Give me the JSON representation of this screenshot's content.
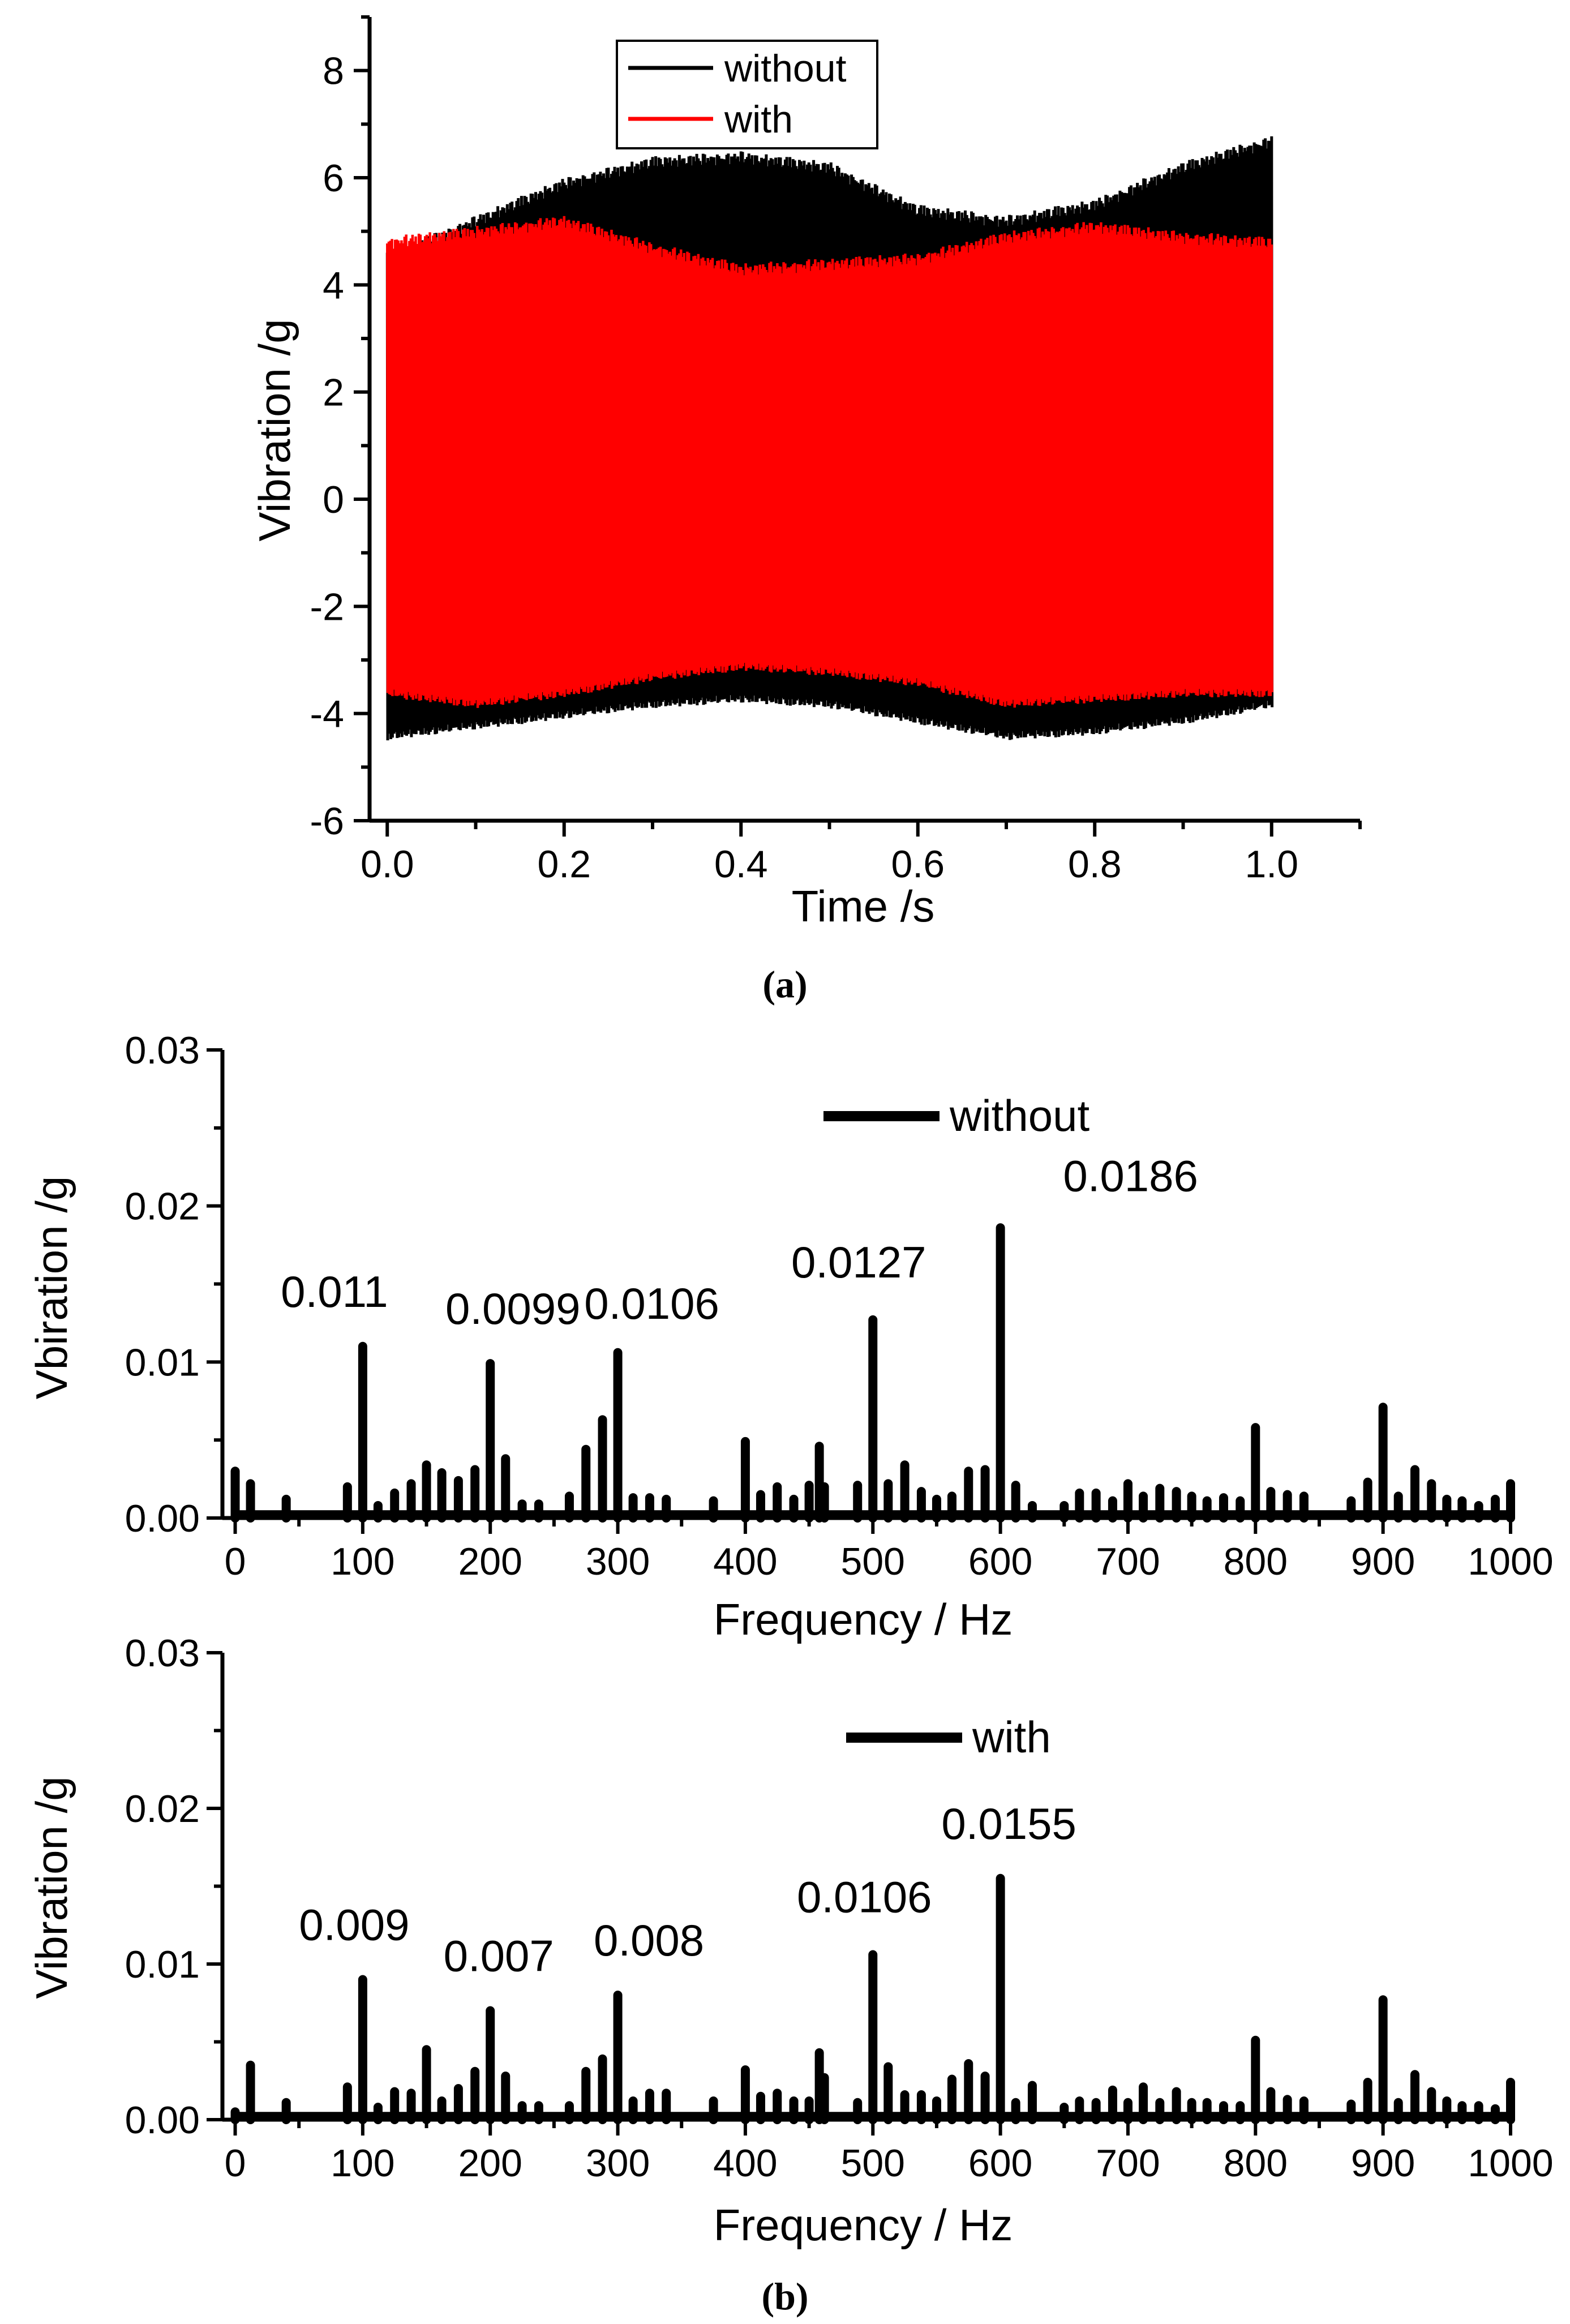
{
  "chart_data": [
    {
      "id": "a",
      "type": "line",
      "caption": "(a)",
      "xlabel": "Time /s",
      "ylabel": "Vibration /g",
      "xlim": [
        -0.02,
        1.1
      ],
      "ylim": [
        -6,
        9
      ],
      "xticks": [
        "0.0",
        "0.2",
        "0.4",
        "0.6",
        "0.8",
        "1.0"
      ],
      "yticks": [
        "-6",
        "-4",
        "-2",
        "0",
        "2",
        "4",
        "6",
        "8"
      ],
      "legend_position": "top-center",
      "series": [
        {
          "name": "without",
          "color": "#000000",
          "description": "oscillating time signal",
          "envelope_t": [
            0.0,
            0.1,
            0.2,
            0.3,
            0.4,
            0.5,
            0.6,
            0.7,
            0.8,
            0.9,
            1.0
          ],
          "envelope_max": [
            4.6,
            5.3,
            6.0,
            6.4,
            6.5,
            6.3,
            5.5,
            5.3,
            5.6,
            6.3,
            6.8
          ],
          "envelope_min": [
            -4.5,
            -4.3,
            -4.1,
            -3.9,
            -3.8,
            -3.9,
            -4.2,
            -4.5,
            -4.4,
            -4.2,
            -3.9
          ]
        },
        {
          "name": "with",
          "color": "#ff0000",
          "description": "oscillating time signal",
          "envelope_t": [
            0.0,
            0.1,
            0.2,
            0.3,
            0.4,
            0.5,
            0.6,
            0.7,
            0.8,
            0.9,
            1.0
          ],
          "envelope_max": [
            4.9,
            5.1,
            5.3,
            4.8,
            4.4,
            4.5,
            4.6,
            5.0,
            5.2,
            5.0,
            4.9
          ],
          "envelope_min": [
            -3.7,
            -3.9,
            -3.7,
            -3.4,
            -3.2,
            -3.3,
            -3.5,
            -3.9,
            -3.8,
            -3.7,
            -3.7
          ]
        }
      ]
    },
    {
      "id": "b-top",
      "type": "bar",
      "xlabel": "Frequency / Hz",
      "ylabel": "Vbiration /g",
      "xlim": [
        -10,
        1000
      ],
      "ylim": [
        0,
        0.03
      ],
      "xticks": [
        "0",
        "100",
        "200",
        "300",
        "400",
        "500",
        "600",
        "700",
        "800",
        "900",
        "1000"
      ],
      "yticks": [
        "0.00",
        "0.01",
        "0.02",
        "0.03"
      ],
      "legend": "without",
      "legend_position": "top-center",
      "series": [
        {
          "name": "without",
          "color": "#000000",
          "x": [
            0,
            12,
            40,
            88,
            100,
            112,
            125,
            138,
            150,
            162,
            175,
            188,
            200,
            212,
            225,
            238,
            262,
            275,
            288,
            300,
            312,
            325,
            338,
            375,
            400,
            412,
            425,
            438,
            450,
            458,
            462,
            488,
            500,
            512,
            525,
            538,
            550,
            562,
            575,
            588,
            600,
            612,
            625,
            650,
            662,
            675,
            688,
            700,
            712,
            725,
            738,
            750,
            762,
            775,
            788,
            800,
            812,
            825,
            838,
            875,
            888,
            900,
            912,
            925,
            938,
            950,
            962,
            975,
            988,
            1000
          ],
          "values": [
            0.003,
            0.0022,
            0.0012,
            0.002,
            0.011,
            0.0008,
            0.0016,
            0.0022,
            0.0034,
            0.0029,
            0.0024,
            0.0031,
            0.0099,
            0.0038,
            0.0009,
            0.0009,
            0.0014,
            0.0044,
            0.0063,
            0.0106,
            0.0013,
            0.0013,
            0.0012,
            0.0011,
            0.0049,
            0.0015,
            0.002,
            0.0012,
            0.0021,
            0.0046,
            0.002,
            0.0021,
            0.0127,
            0.0022,
            0.0034,
            0.0017,
            0.0012,
            0.0014,
            0.003,
            0.0031,
            0.0186,
            0.0021,
            0.0008,
            0.0008,
            0.0016,
            0.0016,
            0.0011,
            0.0022,
            0.0014,
            0.0019,
            0.0017,
            0.0014,
            0.0011,
            0.0013,
            0.0011,
            0.0058,
            0.0017,
            0.0015,
            0.0014,
            0.0011,
            0.0023,
            0.0071,
            0.0014,
            0.0031,
            0.0022,
            0.0012,
            0.0011,
            0.0008,
            0.0012,
            0.0022
          ]
        }
      ],
      "annotations": [
        {
          "x": 100,
          "value": 0.011,
          "label": "0.011"
        },
        {
          "x": 200,
          "value": 0.0099,
          "label": "0.0099"
        },
        {
          "x": 300,
          "value": 0.0106,
          "label": "0.0106"
        },
        {
          "x": 500,
          "value": 0.0127,
          "label": "0.0127"
        },
        {
          "x": 600,
          "value": 0.0186,
          "label": "0.0186"
        }
      ]
    },
    {
      "id": "b-bottom",
      "type": "bar",
      "caption": "(b)",
      "xlabel": "Frequency / Hz",
      "ylabel": "Vibration /g",
      "xlim": [
        -10,
        1000
      ],
      "ylim": [
        0,
        0.03
      ],
      "xticks": [
        "0",
        "100",
        "200",
        "300",
        "400",
        "500",
        "600",
        "700",
        "800",
        "900",
        "1000"
      ],
      "yticks": [
        "0.00",
        "0.01",
        "0.02",
        "0.03"
      ],
      "legend": "with",
      "legend_position": "top-center",
      "series": [
        {
          "name": "with",
          "color": "#000000",
          "x": [
            0,
            12,
            40,
            88,
            100,
            112,
            125,
            138,
            150,
            162,
            175,
            188,
            200,
            212,
            225,
            238,
            262,
            275,
            288,
            300,
            312,
            325,
            338,
            375,
            400,
            412,
            425,
            438,
            450,
            458,
            462,
            488,
            500,
            512,
            525,
            538,
            550,
            562,
            575,
            588,
            600,
            612,
            625,
            650,
            662,
            675,
            688,
            700,
            712,
            725,
            738,
            750,
            762,
            775,
            788,
            800,
            812,
            825,
            838,
            875,
            888,
            900,
            912,
            925,
            938,
            950,
            962,
            975,
            988,
            1000
          ],
          "values": [
            0.0005,
            0.0035,
            0.0011,
            0.0021,
            0.009,
            0.0008,
            0.0018,
            0.0017,
            0.0045,
            0.0012,
            0.002,
            0.0031,
            0.007,
            0.0028,
            0.0009,
            0.0009,
            0.0009,
            0.0031,
            0.0039,
            0.008,
            0.0012,
            0.0017,
            0.0017,
            0.0012,
            0.0032,
            0.0015,
            0.0017,
            0.0012,
            0.0012,
            0.0043,
            0.0027,
            0.0011,
            0.0106,
            0.0034,
            0.0016,
            0.0016,
            0.0012,
            0.0026,
            0.0036,
            0.0028,
            0.0155,
            0.0011,
            0.0022,
            0.0008,
            0.0012,
            0.0011,
            0.0019,
            0.0011,
            0.0021,
            0.0011,
            0.0018,
            0.0011,
            0.0011,
            0.0009,
            0.0009,
            0.0051,
            0.0018,
            0.0013,
            0.0012,
            0.001,
            0.0024,
            0.0077,
            0.0011,
            0.0029,
            0.0018,
            0.0012,
            0.0009,
            0.0009,
            0.0007,
            0.0024
          ]
        }
      ],
      "annotations": [
        {
          "x": 100,
          "value": 0.009,
          "label": "0.009"
        },
        {
          "x": 200,
          "value": 0.007,
          "label": "0.007"
        },
        {
          "x": 300,
          "value": 0.008,
          "label": "0.008"
        },
        {
          "x": 500,
          "value": 0.0106,
          "label": "0.0106"
        },
        {
          "x": 600,
          "value": 0.0155,
          "label": "0.0155"
        }
      ]
    }
  ]
}
